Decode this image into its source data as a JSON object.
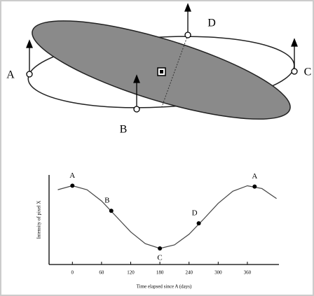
{
  "diagram": {
    "labels": [
      "A",
      "B",
      "C",
      "D"
    ]
  },
  "chart_data": {
    "type": "line",
    "xlabel": "Time elapsed since A (days)",
    "ylabel": "Intensity of pixel X",
    "xlim": [
      -48,
      425
    ],
    "ylim": [
      0,
      1
    ],
    "xticks": [
      0,
      60,
      120,
      180,
      240,
      300,
      360
    ],
    "curve": {
      "x": [
        -30,
        0,
        30,
        60,
        90,
        120,
        150,
        180,
        210,
        240,
        270,
        300,
        330,
        360,
        390,
        420
      ],
      "values": [
        0.835,
        0.88,
        0.835,
        0.709,
        0.537,
        0.364,
        0.233,
        0.18,
        0.219,
        0.338,
        0.507,
        0.683,
        0.818,
        0.879,
        0.848,
        0.736
      ],
      "color": "#444444"
    },
    "points": {
      "x": [
        0,
        80,
        180,
        260,
        375
      ],
      "values": [
        0.88,
        0.6,
        0.18,
        0.46,
        0.87
      ],
      "labels": [
        "A",
        "B",
        "C",
        "D",
        "A"
      ],
      "color": "#000000"
    }
  }
}
